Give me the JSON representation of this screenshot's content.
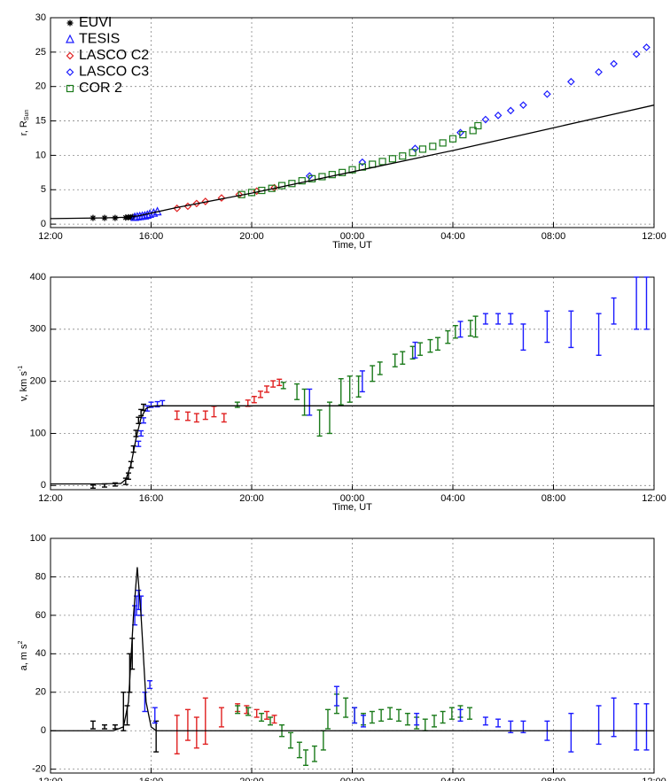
{
  "chart_data": [
    {
      "type": "scatter",
      "xlabel": "Time, UT",
      "ylabel": {
        "text": "r, R",
        "sub": "Sun"
      },
      "xlim": [
        0,
        24
      ],
      "xticks": [
        {
          "value": 0,
          "label": "12:00"
        },
        {
          "value": 4,
          "label": "16:00"
        },
        {
          "value": 8,
          "label": "20:00"
        },
        {
          "value": 12,
          "label": "00:00"
        },
        {
          "value": 16,
          "label": "04:00"
        },
        {
          "value": 20,
          "label": "08:00"
        },
        {
          "value": 24,
          "label": "12:00"
        }
      ],
      "ylim": [
        -0.5,
        30
      ],
      "yticks": [
        0,
        5,
        10,
        15,
        20,
        25,
        30
      ],
      "grid": true,
      "legend": "upper left",
      "series": [
        {
          "name": "EUVI",
          "color": "#000000",
          "marker": "asterisk",
          "x": [
            1.69,
            2.15,
            2.57,
            2.99,
            3.1,
            3.2,
            3.27
          ],
          "values": [
            0.9,
            0.9,
            0.9,
            0.95,
            1.0,
            1.0,
            1.05
          ]
        },
        {
          "name": "TESIS",
          "color": "#1a1aff",
          "marker": "triangle",
          "x": [
            3.35,
            3.45,
            3.55,
            3.65,
            3.75,
            3.85,
            3.95,
            4.1,
            4.25
          ],
          "values": [
            1.0,
            1.05,
            1.1,
            1.15,
            1.2,
            1.3,
            1.45,
            1.6,
            1.8
          ]
        },
        {
          "name": "LASCO C2",
          "color": "#e02020",
          "marker": "diamond",
          "x": [
            5.03,
            5.46,
            5.81,
            6.16,
            6.8,
            7.5,
            8.2,
            8.9
          ],
          "values": [
            2.3,
            2.6,
            3.0,
            3.3,
            3.8,
            4.3,
            4.8,
            5.3
          ]
        },
        {
          "name": "LASCO C3",
          "color": "#1a1aff",
          "marker": "diamond",
          "x": [
            10.3,
            12.4,
            14.5,
            16.3,
            17.3,
            17.8,
            18.3,
            18.8,
            19.75,
            20.7,
            21.8,
            22.4,
            23.3,
            23.7
          ],
          "values": [
            7.0,
            9.0,
            11.0,
            13.3,
            15.2,
            15.8,
            16.5,
            17.3,
            18.9,
            20.7,
            22.1,
            23.3,
            24.7,
            25.7
          ]
        },
        {
          "name": "COR 2",
          "color": "#1a7a1a",
          "marker": "square",
          "x": [
            7.6,
            8.0,
            8.4,
            8.8,
            9.2,
            9.6,
            10.0,
            10.4,
            10.8,
            11.2,
            11.6,
            12.0,
            12.4,
            12.8,
            13.2,
            13.6,
            14.0,
            14.4,
            14.8,
            15.2,
            15.6,
            16.0,
            16.4,
            16.8,
            17.0
          ],
          "values": [
            4.3,
            4.6,
            4.9,
            5.2,
            5.6,
            5.9,
            6.3,
            6.6,
            6.9,
            7.2,
            7.5,
            7.9,
            8.3,
            8.7,
            9.1,
            9.5,
            9.9,
            10.4,
            10.9,
            11.3,
            11.8,
            12.4,
            13.0,
            13.6,
            14.3
          ]
        },
        {
          "color": "#000000",
          "marker": "line",
          "x": [
            0,
            2,
            3,
            3.5,
            4,
            5,
            8,
            12,
            16,
            20,
            24
          ],
          "values": [
            0.8,
            0.9,
            1.0,
            1.2,
            1.6,
            2.4,
            4.5,
            7.6,
            10.7,
            14.0,
            17.3
          ]
        }
      ]
    },
    {
      "type": "scatter",
      "xlabel": "Time, UT",
      "ylabel": {
        "text": "v, km s",
        "sup": "-1"
      },
      "xlim": [
        0,
        24
      ],
      "xticks": [
        {
          "value": 0,
          "label": "12:00"
        },
        {
          "value": 4,
          "label": "16:00"
        },
        {
          "value": 8,
          "label": "20:00"
        },
        {
          "value": 12,
          "label": "00:00"
        },
        {
          "value": 16,
          "label": "04:00"
        },
        {
          "value": 20,
          "label": "08:00"
        },
        {
          "value": 24,
          "label": "12:00"
        }
      ],
      "ylim": [
        -8,
        400
      ],
      "yticks": [
        0,
        100,
        200,
        300,
        400
      ],
      "grid": true,
      "series": [
        {
          "color": "#000000",
          "marker": "errorbar",
          "x": [
            1.69,
            2.15,
            2.57,
            2.99,
            3.1,
            3.2,
            3.3,
            3.4,
            3.5,
            3.6,
            3.7
          ],
          "values": [
            -2,
            0,
            2,
            8,
            18,
            40,
            70,
            100,
            125,
            140,
            150
          ],
          "errors": [
            3,
            3,
            3,
            6,
            6,
            6,
            6,
            6,
            6,
            6,
            6
          ]
        },
        {
          "color": "#1a1aff",
          "marker": "errorbar",
          "x": [
            3.5,
            3.6,
            3.7,
            3.85,
            4.0,
            4.25,
            4.45
          ],
          "values": [
            80,
            100,
            125,
            148,
            155,
            156,
            158
          ],
          "errors": [
            5,
            5,
            5,
            5,
            5,
            5,
            5
          ]
        },
        {
          "color": "#e02020",
          "marker": "errorbar",
          "x": [
            5.03,
            5.46,
            5.81,
            6.16,
            6.5,
            6.9,
            7.85,
            8.1,
            8.35,
            8.6,
            8.85,
            9.1
          ],
          "values": [
            135,
            133,
            130,
            135,
            142,
            130,
            158,
            165,
            175,
            185,
            195,
            198
          ],
          "errors": [
            8,
            8,
            8,
            8,
            10,
            8,
            6,
            6,
            6,
            6,
            6,
            6
          ]
        },
        {
          "color": "#1a7a1a",
          "marker": "errorbar",
          "x": [
            7.43,
            9.26,
            9.8,
            10.1,
            10.7,
            11.1,
            11.55,
            11.9,
            12.25,
            12.8,
            13.1,
            13.7,
            14.0,
            14.4,
            14.7,
            15.1,
            15.4,
            15.8,
            16.1,
            16.7,
            16.9
          ],
          "values": [
            155,
            192,
            180,
            160,
            120,
            130,
            180,
            185,
            190,
            215,
            225,
            240,
            245,
            255,
            262,
            268,
            272,
            285,
            295,
            302,
            305
          ],
          "errors": [
            5,
            6,
            15,
            25,
            25,
            30,
            25,
            25,
            20,
            15,
            12,
            12,
            12,
            12,
            12,
            12,
            12,
            12,
            12,
            15,
            20
          ]
        },
        {
          "color": "#1a1aff",
          "marker": "errorbar",
          "x": [
            10.3,
            12.4,
            14.5,
            16.3,
            17.3,
            17.8,
            18.3,
            18.8,
            19.75,
            20.7,
            21.8,
            22.4,
            23.3,
            23.7
          ],
          "values": [
            160,
            200,
            260,
            300,
            320,
            320,
            320,
            285,
            305,
            300,
            290,
            335,
            350,
            350
          ],
          "errors": [
            25,
            20,
            15,
            15,
            10,
            10,
            10,
            25,
            30,
            35,
            40,
            25,
            50,
            50
          ]
        },
        {
          "color": "#000000",
          "marker": "line",
          "x": [
            0,
            2,
            2.8,
            3.0,
            3.2,
            3.4,
            3.6,
            3.8,
            4.0,
            4.2,
            24
          ],
          "values": [
            3,
            3,
            4,
            12,
            40,
            90,
            130,
            148,
            152,
            153,
            153
          ]
        }
      ]
    },
    {
      "type": "scatter",
      "xlabel": "Time, UT",
      "ylabel": {
        "text": "a, m s",
        "sup": "2"
      },
      "xlim": [
        0,
        24
      ],
      "xticks": [
        {
          "value": 0,
          "label": "12:00"
        },
        {
          "value": 4,
          "label": "16:00"
        },
        {
          "value": 8,
          "label": "20:00"
        },
        {
          "value": 12,
          "label": "00:00"
        },
        {
          "value": 16,
          "label": "04:00"
        },
        {
          "value": 20,
          "label": "08:00"
        },
        {
          "value": 24,
          "label": "12:00"
        }
      ],
      "ylim": [
        -22,
        100
      ],
      "yticks": [
        -20,
        0,
        20,
        40,
        60,
        80,
        100
      ],
      "grid": true,
      "series": [
        {
          "color": "#000000",
          "marker": "errorbar",
          "x": [
            1.69,
            2.15,
            2.57,
            2.9,
            3.05,
            3.15,
            3.25,
            4.2
          ],
          "values": [
            3,
            2,
            2,
            10,
            8,
            30,
            40,
            -3
          ],
          "errors": [
            2,
            1,
            1,
            10,
            5,
            10,
            8,
            8
          ]
        },
        {
          "color": "#1a1aff",
          "marker": "errorbar",
          "x": [
            3.35,
            3.42,
            3.5,
            3.6,
            3.75,
            3.95,
            4.15
          ],
          "values": [
            60,
            65,
            68,
            65,
            15,
            24,
            8
          ],
          "errors": [
            5,
            5,
            5,
            5,
            5,
            2,
            4
          ]
        },
        {
          "color": "#e02020",
          "marker": "errorbar",
          "x": [
            5.03,
            5.46,
            5.81,
            6.16,
            6.8,
            7.44,
            7.8,
            8.2,
            8.6,
            8.9
          ],
          "values": [
            -2,
            3,
            -1,
            5,
            7,
            12,
            11,
            9,
            8,
            6
          ],
          "errors": [
            10,
            8,
            8,
            12,
            5,
            2,
            2,
            2,
            2,
            2
          ]
        },
        {
          "color": "#1a7a1a",
          "marker": "errorbar",
          "x": [
            7.44,
            7.86,
            8.39,
            8.74,
            9.2,
            9.55,
            9.9,
            10.15,
            10.5,
            10.85,
            11.03,
            11.38,
            11.74,
            12.09,
            12.44,
            12.79,
            13.15,
            13.5,
            13.85,
            14.2,
            14.56,
            14.9,
            15.26,
            15.6,
            15.96,
            16.3,
            16.67
          ],
          "values": [
            11,
            10,
            7,
            5,
            0,
            -5,
            -10,
            -14,
            -12,
            -5,
            6,
            14,
            12,
            8,
            6,
            7,
            8,
            9,
            8,
            6,
            4,
            3,
            5,
            7,
            9,
            10,
            9
          ],
          "errors": [
            2,
            2,
            2,
            2,
            3,
            4,
            4,
            4,
            4,
            5,
            5,
            5,
            5,
            4,
            3,
            3,
            3,
            3,
            3,
            3,
            3,
            3,
            3,
            3,
            3,
            3,
            3
          ]
        },
        {
          "color": "#1a1aff",
          "marker": "errorbar",
          "x": [
            11.38,
            12.09,
            12.44,
            14.56,
            16.3,
            17.3,
            17.8,
            18.3,
            18.8,
            19.75,
            20.7,
            21.8,
            22.4,
            23.3,
            23.7
          ],
          "values": [
            18,
            8,
            5,
            6,
            8,
            5,
            4,
            2,
            2,
            0,
            -1,
            3,
            7,
            2,
            2
          ],
          "errors": [
            5,
            4,
            3,
            3,
            3,
            2,
            2,
            3,
            3,
            5,
            10,
            10,
            10,
            12,
            12
          ]
        },
        {
          "color": "#000000",
          "marker": "line",
          "x": [
            0,
            2.5,
            2.9,
            3.1,
            3.3,
            3.45,
            3.6,
            3.8,
            4.0,
            4.2,
            24
          ],
          "values": [
            0,
            0,
            2,
            15,
            60,
            85,
            60,
            15,
            2,
            0,
            0
          ]
        }
      ]
    }
  ]
}
